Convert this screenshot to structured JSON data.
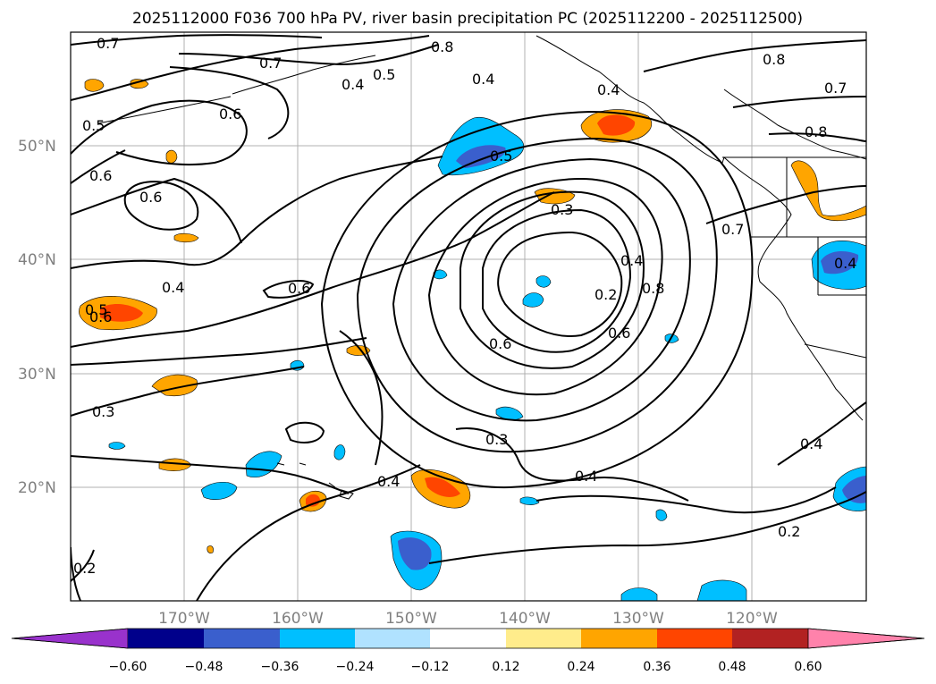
{
  "title": "2025112000 F036 700 hPa PV, river basin precipitation PC (2025112200 - 2025112500)",
  "map": {
    "lat_labels": [
      {
        "text": "50°N",
        "lat": 50
      },
      {
        "text": "40°N",
        "lat": 40
      },
      {
        "text": "30°N",
        "lat": 30
      },
      {
        "text": "20°N",
        "lat": 20
      }
    ],
    "lon_labels": [
      {
        "text": "170°W",
        "lon": -170
      },
      {
        "text": "160°W",
        "lon": -160
      },
      {
        "text": "150°W",
        "lon": -150
      },
      {
        "text": "140°W",
        "lon": -140
      },
      {
        "text": "130°W",
        "lon": -130
      },
      {
        "text": "120°W",
        "lon": -120
      }
    ],
    "extent": {
      "lon_min": -180,
      "lon_max": -110,
      "lat_min": 10,
      "lat_max": 60
    },
    "contour_labels": [
      "0.7",
      "0.8",
      "0.7",
      "0.5",
      "0.4",
      "0.6",
      "0.5",
      "0.4",
      "0.4",
      "0.6",
      "0.6",
      "0.4",
      "0.5",
      "0.3",
      "0.6",
      "0.2",
      "0.4",
      "0.8",
      "0.6",
      "0.6",
      "0.3",
      "0.3",
      "0.4",
      "0.4",
      "0.2",
      "0.2",
      "0.4",
      "0.7",
      "0.8",
      "0.8",
      "0.7",
      "0.4",
      "0.5",
      "0.6"
    ]
  },
  "colorbar": {
    "ticks": [
      "−0.60",
      "−0.48",
      "−0.36",
      "−0.24",
      "−0.12",
      "0.12",
      "0.24",
      "0.36",
      "0.48",
      "0.60"
    ],
    "levels": [
      -0.6,
      -0.48,
      -0.36,
      -0.24,
      -0.12,
      0.12,
      0.24,
      0.36,
      0.48,
      0.6
    ],
    "colors": [
      "#9932cc",
      "#00008b",
      "#3a5fcd",
      "#00bfff",
      "#b0e2ff",
      "#ffffff",
      "#ffec8b",
      "#ffa500",
      "#ff4500",
      "#b22222",
      "#ff82ab"
    ]
  }
}
